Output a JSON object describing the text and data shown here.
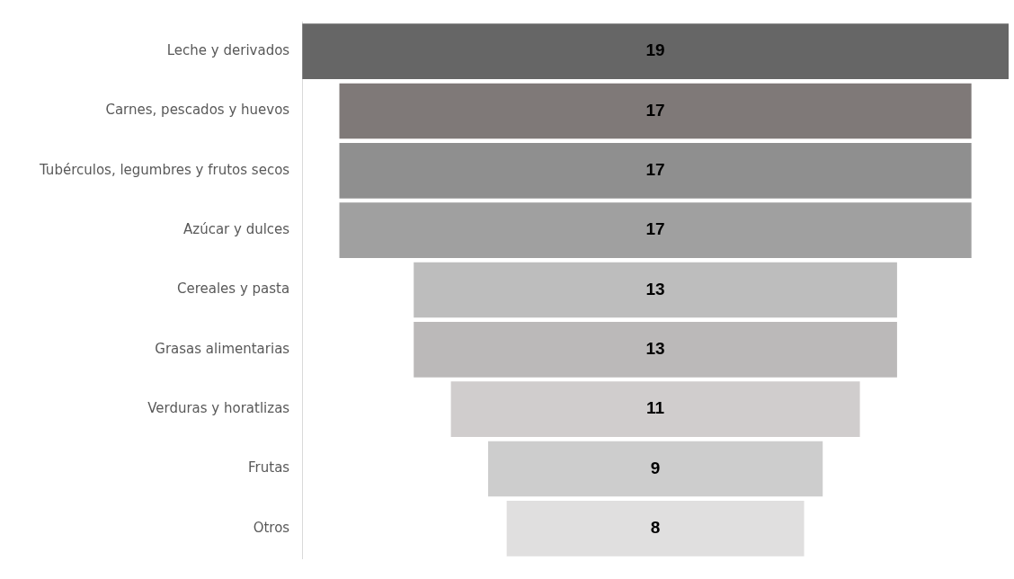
{
  "chart_data": {
    "type": "other",
    "categories": [
      "Leche y derivados",
      "Carnes, pescados y huevos",
      "Tubérculos, legumbres y frutos secos",
      "Azúcar y dulces",
      "Cereales y pasta",
      "Grasas alimentarias",
      "Verduras y horatlizas",
      "Frutas",
      "Otros"
    ],
    "values": [
      19,
      17,
      17,
      17,
      13,
      13,
      11,
      9,
      8
    ],
    "colors": [
      "#666666",
      "#7f7978",
      "#8f8f8f",
      "#a0a0a0",
      "#bdbdbd",
      "#bbb9b9",
      "#d0cdcd",
      "#cdcdcd",
      "#e0dfdf"
    ],
    "data_labels": true
  }
}
